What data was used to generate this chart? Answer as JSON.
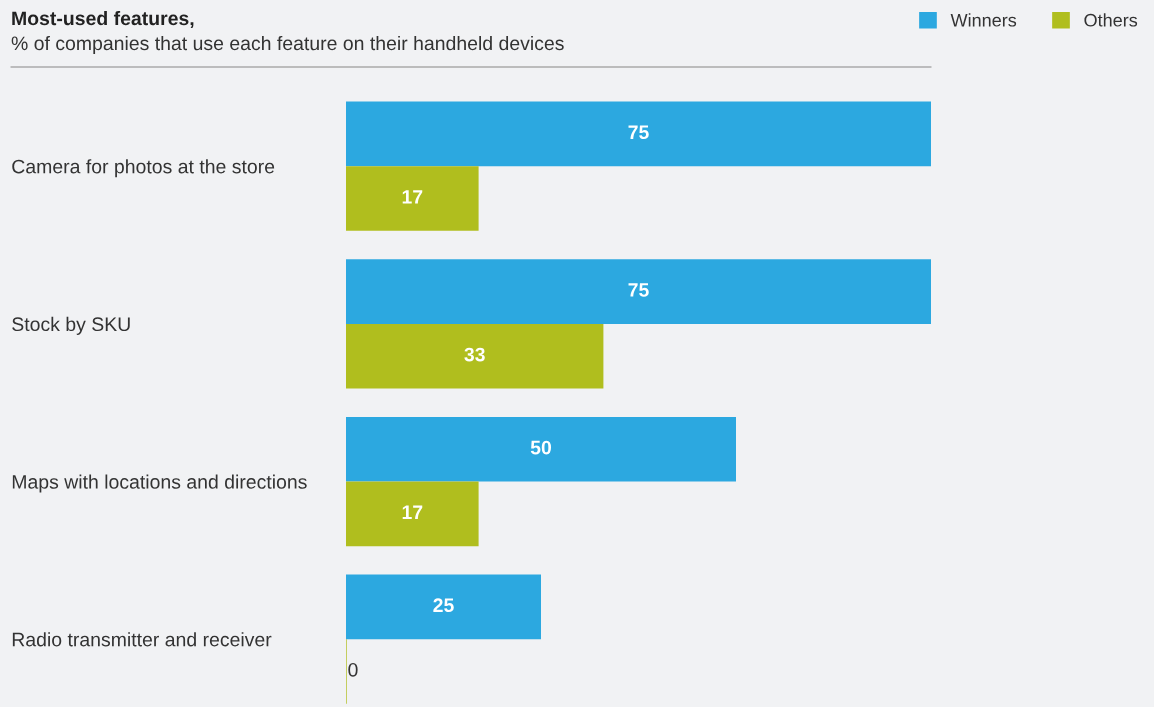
{
  "chart_data": {
    "type": "bar",
    "orientation": "horizontal",
    "title": "Most-used features,",
    "subtitle": "% of companies that use each feature on their handheld devices",
    "categories": [
      "Camera for photos at the store",
      "Stock by SKU",
      "Maps with locations and directions",
      "Radio transmitter and receiver"
    ],
    "series": [
      {
        "name": "Winners",
        "color": "#2ca8e0",
        "values": [
          75,
          75,
          50,
          25
        ]
      },
      {
        "name": "Others",
        "color": "#b0be1e",
        "values": [
          17,
          33,
          17,
          0
        ]
      }
    ],
    "xlim": [
      0,
      75
    ],
    "data_labels": true,
    "legend": "top right",
    "grid": false,
    "tick_labels": "y"
  }
}
